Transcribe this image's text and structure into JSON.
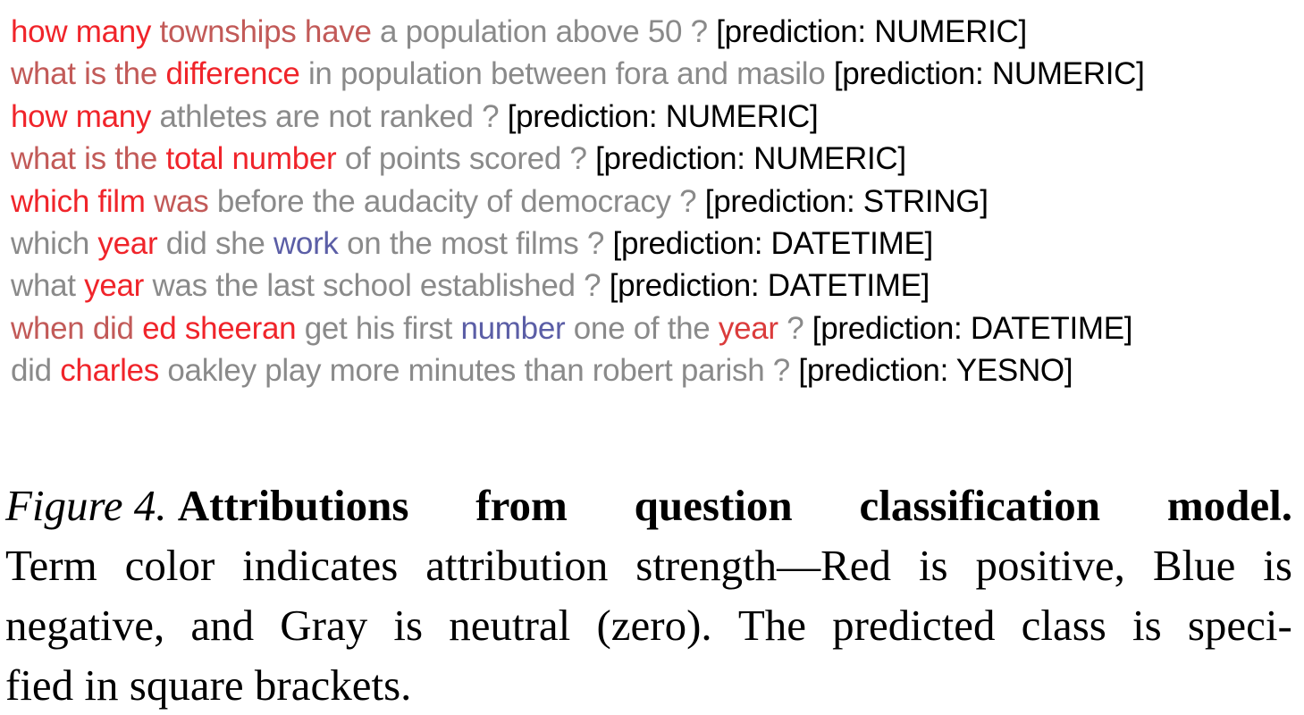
{
  "colors": {
    "gray": "#8a8a8a",
    "red_strong": "#f0242a",
    "red_light": "#c25a58",
    "red_mid": "#db3c3c",
    "blue": "#5b5ea6",
    "prediction_text": "#000000"
  },
  "examples": [
    {
      "tokens": [
        {
          "text": "how many",
          "tone": "red_strong"
        },
        {
          "text": " townships have",
          "tone": "red_light"
        },
        {
          "text": " a population above 50 ?",
          "tone": "gray"
        }
      ],
      "prediction": " [prediction: NUMERIC]"
    },
    {
      "tokens": [
        {
          "text": "what is the ",
          "tone": "red_light"
        },
        {
          "text": "difference",
          "tone": "red_strong"
        },
        {
          "text": " in population between fora and masilo",
          "tone": "gray"
        }
      ],
      "prediction": " [prediction: NUMERIC]"
    },
    {
      "tokens": [
        {
          "text": "how many",
          "tone": "red_strong"
        },
        {
          "text": " athletes are not ranked ?",
          "tone": "gray"
        }
      ],
      "prediction": " [prediction: NUMERIC]"
    },
    {
      "tokens": [
        {
          "text": "what is the ",
          "tone": "red_light"
        },
        {
          "text": "total number",
          "tone": "red_strong"
        },
        {
          "text": " of points scored ?",
          "tone": "gray"
        }
      ],
      "prediction": " [prediction: NUMERIC]"
    },
    {
      "tokens": [
        {
          "text": "which film",
          "tone": "red_strong"
        },
        {
          "text": " was",
          "tone": "red_light"
        },
        {
          "text": " before the audacity of democracy ?",
          "tone": "gray"
        }
      ],
      "prediction": " [prediction: STRING]"
    },
    {
      "tokens": [
        {
          "text": "which ",
          "tone": "gray"
        },
        {
          "text": "year",
          "tone": "red_strong"
        },
        {
          "text": " did she ",
          "tone": "gray"
        },
        {
          "text": "work",
          "tone": "blue"
        },
        {
          "text": " on the most films ?",
          "tone": "gray"
        }
      ],
      "prediction": " [prediction: DATETIME]"
    },
    {
      "tokens": [
        {
          "text": "what ",
          "tone": "gray"
        },
        {
          "text": "year",
          "tone": "red_strong"
        },
        {
          "text": " was the last school established ?",
          "tone": "gray"
        }
      ],
      "prediction": " [prediction: DATETIME]"
    },
    {
      "tokens": [
        {
          "text": "when did ",
          "tone": "red_light"
        },
        {
          "text": "ed sheeran",
          "tone": "red_strong"
        },
        {
          "text": " get his first ",
          "tone": "gray"
        },
        {
          "text": "number",
          "tone": "blue"
        },
        {
          "text": " one of the ",
          "tone": "gray"
        },
        {
          "text": "year",
          "tone": "red_mid"
        },
        {
          "text": " ?",
          "tone": "gray"
        }
      ],
      "prediction": " [prediction: DATETIME]"
    },
    {
      "tokens": [
        {
          "text": "did ",
          "tone": "gray"
        },
        {
          "text": "charles",
          "tone": "red_strong"
        },
        {
          "text": " oakley play more minutes than robert parish ?",
          "tone": "gray"
        }
      ],
      "prediction": " [prediction: YESNO]"
    }
  ],
  "caption": {
    "label": "Figure 4.",
    "title_words": [
      "Attributions",
      "from",
      "question",
      "classification",
      "model."
    ],
    "lines": [
      "Term color indicates attribution strength—Red is positive, Blue is",
      "negative, and Gray is neutral (zero). The predicted class is speci-",
      "fied in square brackets."
    ]
  }
}
